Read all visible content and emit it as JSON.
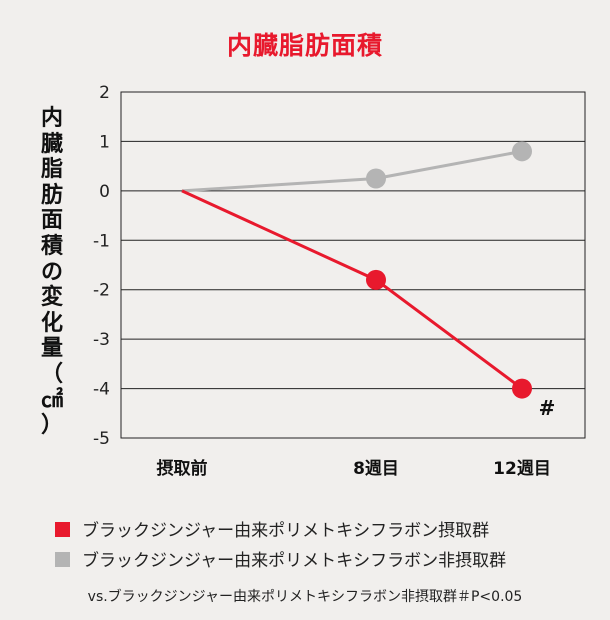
{
  "chart_data": {
    "type": "line",
    "title": "内臓脂肪面積",
    "ylabel_chars": [
      "内",
      "臓",
      "脂",
      "肪",
      "面",
      "積",
      "の",
      "変",
      "化",
      "量",
      "（",
      "㎠",
      "）"
    ],
    "categories": [
      "摂取前",
      "8週目",
      "12週目"
    ],
    "ylim": [
      -5,
      2
    ],
    "yticks": [
      "2",
      "1",
      "0",
      "-1",
      "-2",
      "-3",
      "-4",
      "-5"
    ],
    "grid": true,
    "series": [
      {
        "name": "ブラックジンジャー由来ポリメトキシフラボン摂取群",
        "color": "#e8192d",
        "values": [
          0,
          -1.8,
          -4.0
        ]
      },
      {
        "name": "ブラックジンジャー由来ポリメトキシフラボン非摂取群",
        "color": "#b4b4b4",
        "values": [
          0,
          0.25,
          0.8
        ]
      }
    ],
    "annotations": [
      {
        "category_index": 2,
        "text": "#"
      }
    ],
    "note": "vs.ブラックジンジャー由来ポリメトキシフラボン非摂取群＃P<0.05"
  }
}
